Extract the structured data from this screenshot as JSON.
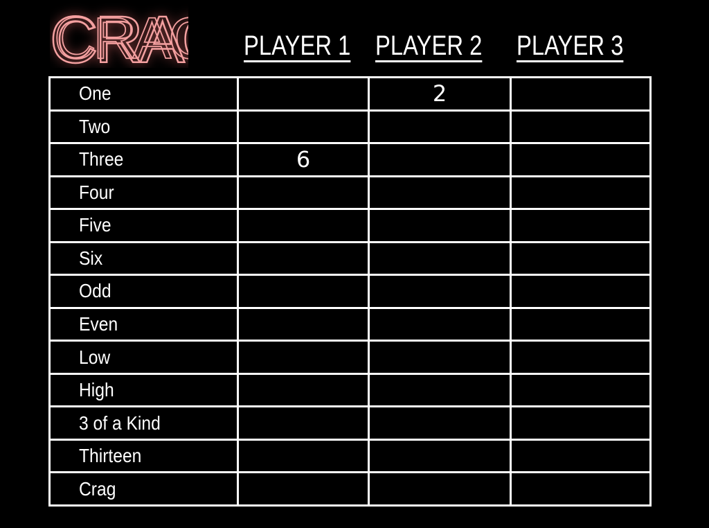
{
  "logo": {
    "text": "CRAG",
    "color": "#f4a0a0"
  },
  "players": [
    "PLAYER 1",
    "PLAYER 2",
    "PLAYER 3"
  ],
  "rows": [
    {
      "label": "One",
      "scores": [
        "",
        "2",
        ""
      ]
    },
    {
      "label": "Two",
      "scores": [
        "",
        "",
        ""
      ]
    },
    {
      "label": "Three",
      "scores": [
        "6",
        "",
        ""
      ]
    },
    {
      "label": "Four",
      "scores": [
        "",
        "",
        ""
      ]
    },
    {
      "label": "Five",
      "scores": [
        "",
        "",
        ""
      ]
    },
    {
      "label": "Six",
      "scores": [
        "",
        "",
        ""
      ]
    },
    {
      "label": "Odd",
      "scores": [
        "",
        "",
        ""
      ]
    },
    {
      "label": "Even",
      "scores": [
        "",
        "",
        ""
      ]
    },
    {
      "label": "Low",
      "scores": [
        "",
        "",
        ""
      ]
    },
    {
      "label": "High",
      "scores": [
        "",
        "",
        ""
      ]
    },
    {
      "label": "3 of a Kind",
      "scores": [
        "",
        "",
        ""
      ]
    },
    {
      "label": "Thirteen",
      "scores": [
        "",
        "",
        ""
      ]
    },
    {
      "label": "Crag",
      "scores": [
        "",
        "",
        ""
      ]
    }
  ]
}
